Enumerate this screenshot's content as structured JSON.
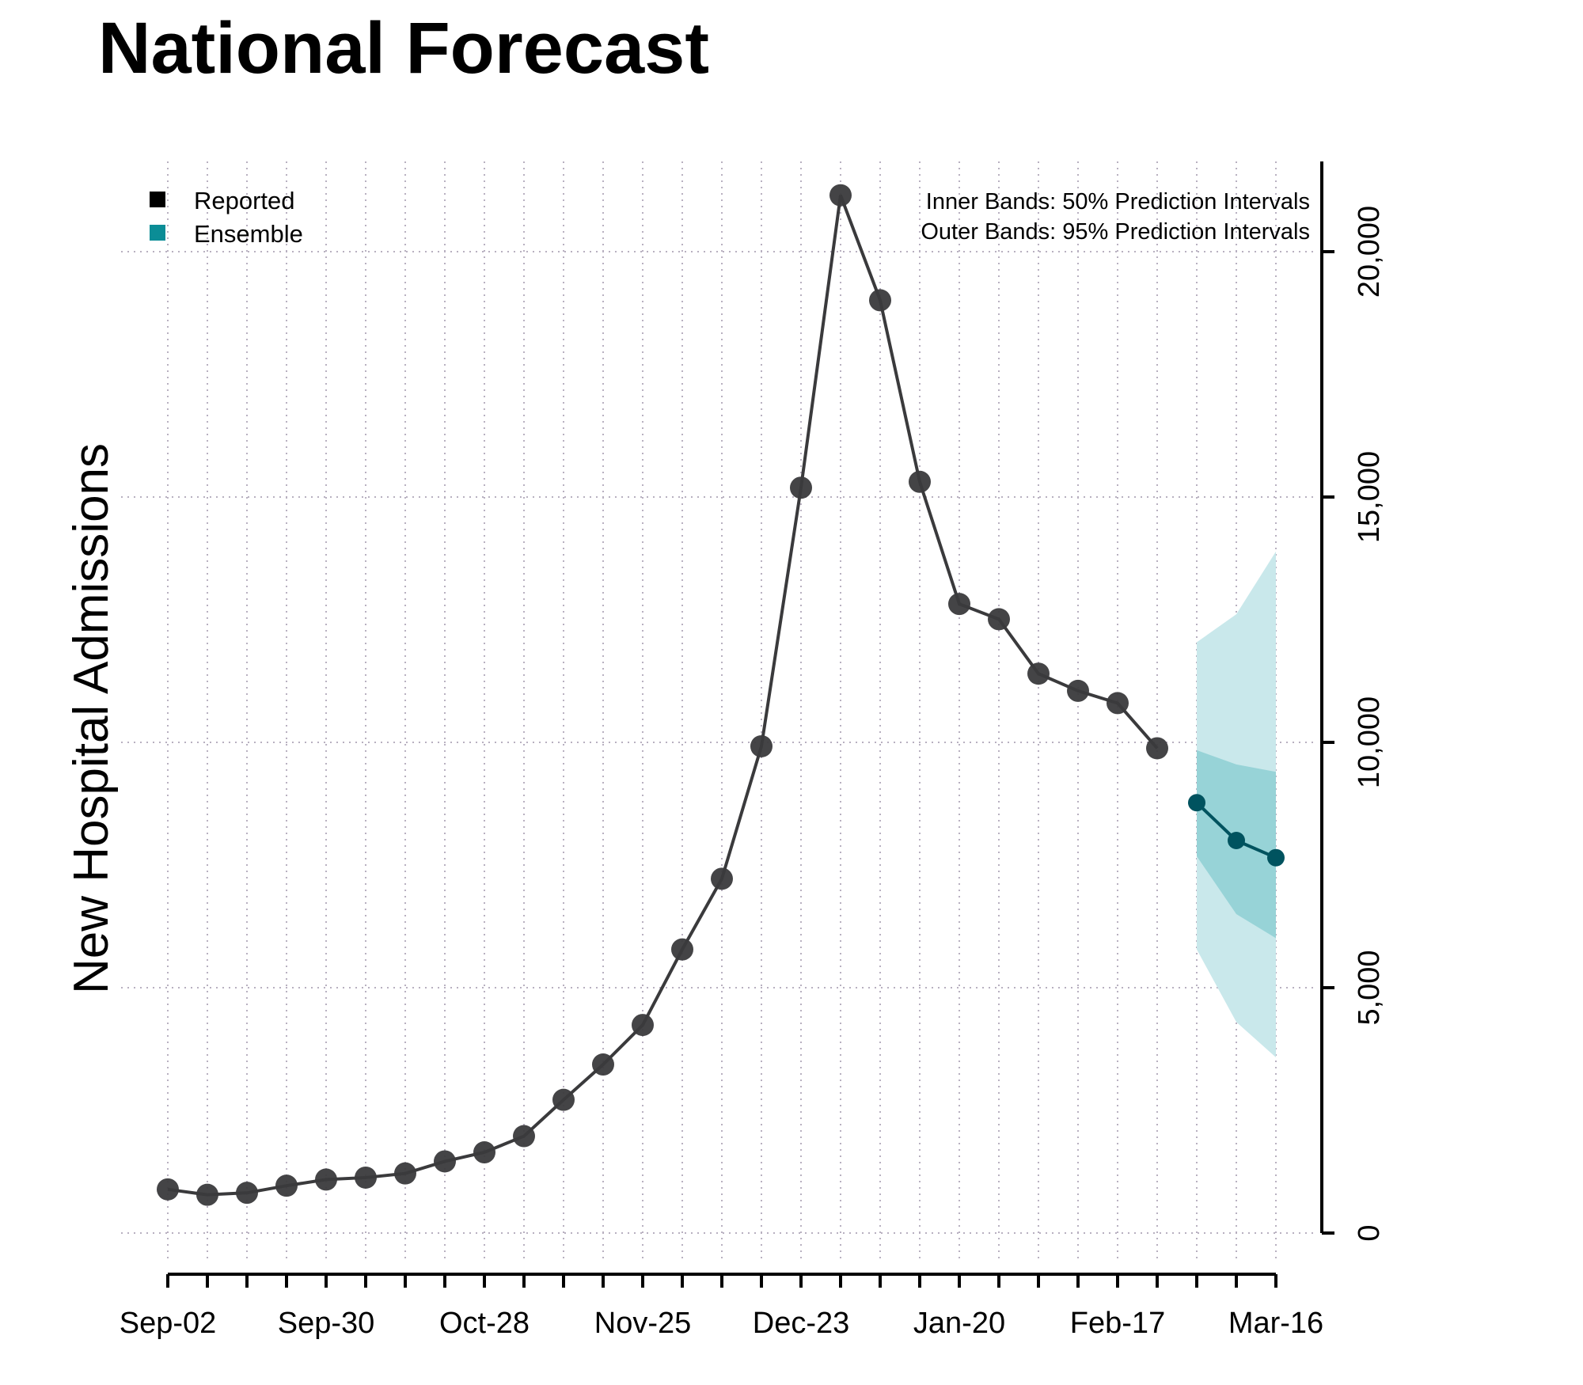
{
  "chart_data": {
    "type": "line",
    "title": "National Forecast",
    "xlabel": "",
    "ylabel": "New Hospital Admissions",
    "ylim": [
      -1000,
      22000
    ],
    "yticks": [
      0,
      5000,
      10000,
      15000,
      20000
    ],
    "ytick_labels": [
      "0",
      "5,000",
      "10,000",
      "15,000",
      "20,000"
    ],
    "xtick_labels": [
      "Sep-02",
      "Sep-30",
      "Oct-28",
      "Nov-25",
      "Dec-23",
      "Jan-20",
      "Feb-17",
      "Mar-16"
    ],
    "x": [
      "Sep-02",
      "Sep-09",
      "Sep-16",
      "Sep-23",
      "Sep-30",
      "Oct-07",
      "Oct-14",
      "Oct-21",
      "Oct-28",
      "Nov-04",
      "Nov-11",
      "Nov-18",
      "Nov-25",
      "Dec-02",
      "Dec-09",
      "Dec-16",
      "Dec-23",
      "Dec-30",
      "Jan-06",
      "Jan-13",
      "Jan-20",
      "Jan-27",
      "Feb-03",
      "Feb-10",
      "Feb-17",
      "Feb-24",
      "Mar-02",
      "Mar-09",
      "Mar-16"
    ],
    "grid": true,
    "legend_placement": "top-left",
    "series": [
      {
        "name": "Reported",
        "color": "#3a3a3c",
        "x": [
          "Sep-02",
          "Sep-09",
          "Sep-16",
          "Sep-23",
          "Sep-30",
          "Oct-07",
          "Oct-14",
          "Oct-21",
          "Oct-28",
          "Nov-04",
          "Nov-11",
          "Nov-18",
          "Nov-25",
          "Dec-02",
          "Dec-09",
          "Dec-16",
          "Dec-23",
          "Dec-30",
          "Jan-06",
          "Jan-13",
          "Jan-20",
          "Jan-27",
          "Feb-03",
          "Feb-10",
          "Feb-17",
          "Feb-24"
        ],
        "values": [
          890,
          780,
          820,
          965,
          1090,
          1130,
          1215,
          1460,
          1645,
          1975,
          2715,
          3435,
          4240,
          5780,
          7220,
          9920,
          15190,
          21150,
          19010,
          15310,
          12820,
          12510,
          11400,
          11050,
          10800,
          9880
        ]
      },
      {
        "name": "Ensemble",
        "color": "#00535f",
        "legend_color": "#0b8d96",
        "x": [
          "Mar-02",
          "Mar-09",
          "Mar-16"
        ],
        "values": [
          8770,
          8000,
          7650
        ],
        "pi50": {
          "lower": [
            7680,
            6500,
            6010
          ],
          "upper": [
            9840,
            9550,
            9400
          ],
          "color": "#97d3d7"
        },
        "pi95": {
          "lower": [
            5780,
            4300,
            3580
          ],
          "upper": [
            12040,
            12610,
            13890
          ],
          "color": "#c9e8eb"
        }
      }
    ],
    "annotations": [
      "Inner Bands: 50% Prediction Intervals",
      "Outer Bands: 95% Prediction Intervals"
    ]
  }
}
